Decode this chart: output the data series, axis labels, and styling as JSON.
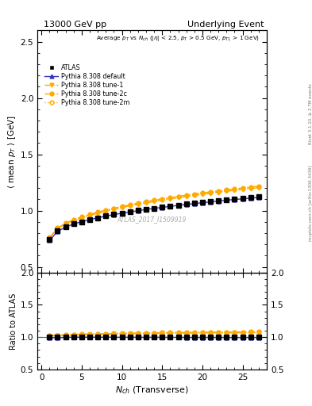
{
  "title_left": "13000 GeV pp",
  "title_right": "Underlying Event",
  "watermark": "ATLAS_2017_I1509919",
  "right_label_top": "Rivet 3.1.10, ≥ 2.7M events",
  "right_label_bottom": "mcplots.cern.ch [arXiv:1306.3436]",
  "ylabel_main": "$\\langle$ mean $p_T$ $\\rangle$ [GeV]",
  "ylabel_ratio": "Ratio to ATLAS",
  "xlabel": "$N_{ch}$ (Transverse)",
  "ylim_main": [
    0.45,
    2.6
  ],
  "ylim_ratio": [
    0.5,
    2.0
  ],
  "yticks_main": [
    0.5,
    1.0,
    1.5,
    2.0,
    2.5
  ],
  "yticks_ratio": [
    0.5,
    1.0,
    1.5,
    2.0
  ],
  "xlim": [
    -0.5,
    28
  ],
  "xticks": [
    0,
    5,
    10,
    15,
    20,
    25
  ],
  "atlas_x": [
    1,
    2,
    3,
    4,
    5,
    6,
    7,
    8,
    9,
    10,
    11,
    12,
    13,
    14,
    15,
    16,
    17,
    18,
    19,
    20,
    21,
    22,
    23,
    24,
    25,
    26,
    27
  ],
  "atlas_y": [
    0.741,
    0.822,
    0.857,
    0.883,
    0.902,
    0.921,
    0.937,
    0.952,
    0.966,
    0.979,
    0.99,
    1.002,
    1.013,
    1.022,
    1.032,
    1.041,
    1.05,
    1.059,
    1.068,
    1.075,
    1.083,
    1.09,
    1.098,
    1.106,
    1.111,
    1.117,
    1.124
  ],
  "default_x": [
    1,
    2,
    3,
    4,
    5,
    6,
    7,
    8,
    9,
    10,
    11,
    12,
    13,
    14,
    15,
    16,
    17,
    18,
    19,
    20,
    21,
    22,
    23,
    24,
    25,
    26,
    27
  ],
  "default_y": [
    0.735,
    0.815,
    0.855,
    0.882,
    0.902,
    0.921,
    0.937,
    0.952,
    0.965,
    0.977,
    0.989,
    1.0,
    1.01,
    1.02,
    1.029,
    1.038,
    1.047,
    1.055,
    1.063,
    1.071,
    1.078,
    1.085,
    1.093,
    1.099,
    1.105,
    1.112,
    1.118
  ],
  "tune1_x": [
    1,
    2,
    3,
    4,
    5,
    6,
    7,
    8,
    9,
    10,
    11,
    12,
    13,
    14,
    15,
    16,
    17,
    18,
    19,
    20,
    21,
    22,
    23,
    24,
    25,
    26,
    27
  ],
  "tune1_y": [
    0.755,
    0.84,
    0.882,
    0.912,
    0.936,
    0.958,
    0.977,
    0.995,
    1.012,
    1.027,
    1.042,
    1.056,
    1.069,
    1.081,
    1.093,
    1.104,
    1.115,
    1.125,
    1.135,
    1.145,
    1.154,
    1.163,
    1.172,
    1.18,
    1.188,
    1.196,
    1.204
  ],
  "tune2c_x": [
    1,
    2,
    3,
    4,
    5,
    6,
    7,
    8,
    9,
    10,
    11,
    12,
    13,
    14,
    15,
    16,
    17,
    18,
    19,
    20,
    21,
    22,
    23,
    24,
    25,
    26,
    27
  ],
  "tune2c_y": [
    0.762,
    0.847,
    0.89,
    0.92,
    0.945,
    0.967,
    0.987,
    1.005,
    1.022,
    1.038,
    1.053,
    1.067,
    1.08,
    1.093,
    1.105,
    1.116,
    1.127,
    1.138,
    1.148,
    1.158,
    1.167,
    1.176,
    1.185,
    1.193,
    1.202,
    1.21,
    1.218
  ],
  "tune2m_x": [
    1,
    2,
    3,
    4,
    5,
    6,
    7,
    8,
    9,
    10,
    11,
    12,
    13,
    14,
    15,
    16,
    17,
    18,
    19,
    20,
    21,
    22,
    23,
    24,
    25,
    26,
    27
  ],
  "tune2m_y": [
    0.758,
    0.843,
    0.886,
    0.916,
    0.94,
    0.962,
    0.982,
    1.0,
    1.017,
    1.032,
    1.047,
    1.061,
    1.074,
    1.087,
    1.098,
    1.11,
    1.121,
    1.131,
    1.141,
    1.151,
    1.16,
    1.169,
    1.178,
    1.187,
    1.195,
    1.203,
    1.211
  ],
  "color_atlas": "#000000",
  "color_default": "#3333cc",
  "color_tune": "#ffaa00",
  "legend_entries": [
    "ATLAS",
    "Pythia 8.308 default",
    "Pythia 8.308 tune-1",
    "Pythia 8.308 tune-2c",
    "Pythia 8.308 tune-2m"
  ]
}
